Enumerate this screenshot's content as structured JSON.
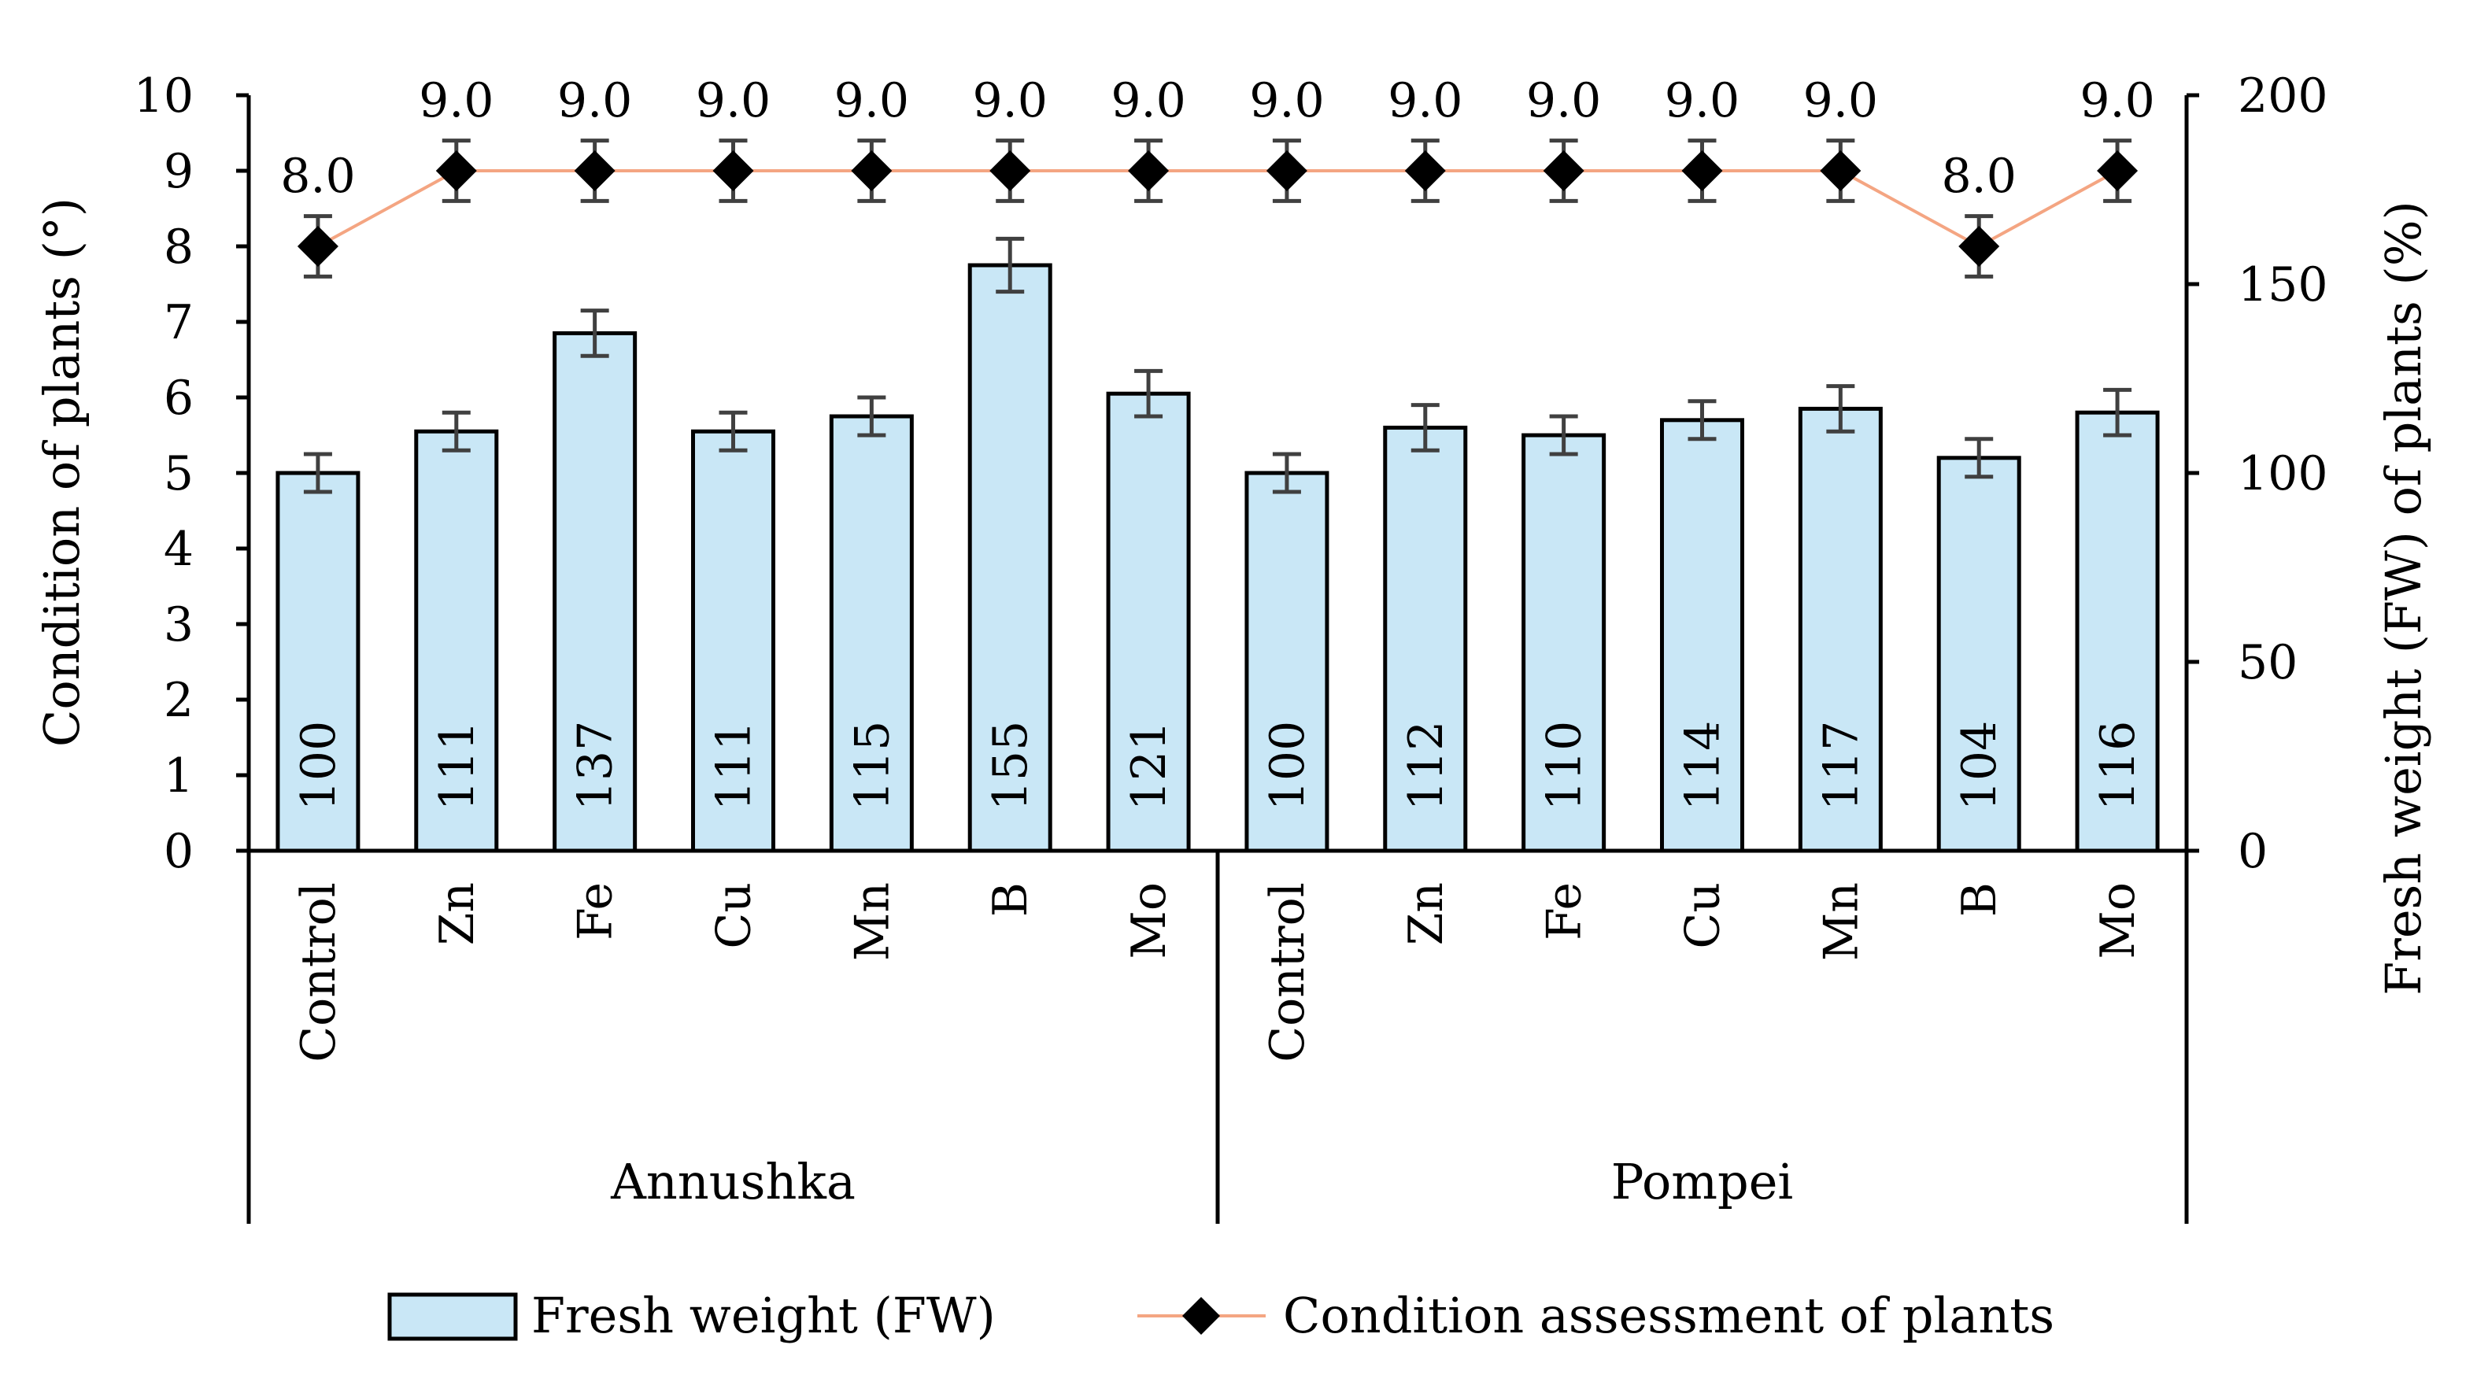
{
  "chart_data": {
    "type": "bar+line",
    "groups": [
      {
        "name": "Annushka",
        "categories": [
          "Control",
          "Zn",
          "Fe",
          "Cu",
          "Mn",
          "B",
          "Mo"
        ]
      },
      {
        "name": "Pompei",
        "categories": [
          "Control",
          "Zn",
          "Fe",
          "Cu",
          "Mn",
          "B",
          "Mo"
        ]
      }
    ],
    "bar_series": {
      "name": "Fresh weight (FW)",
      "axis": "right",
      "values": [
        100,
        111,
        137,
        111,
        115,
        155,
        121,
        100,
        112,
        110,
        114,
        117,
        104,
        116
      ],
      "labels": [
        "100",
        "111",
        "137",
        "111",
        "115",
        "155",
        "121",
        "100",
        "112",
        "110",
        "114",
        "117",
        "104",
        "116"
      ],
      "error": [
        5,
        5,
        6,
        5,
        5,
        7,
        6,
        5,
        6,
        5,
        5,
        6,
        5,
        6
      ]
    },
    "line_series": {
      "name": "Condition assessment of plants",
      "axis": "left",
      "values": [
        8.0,
        9.0,
        9.0,
        9.0,
        9.0,
        9.0,
        9.0,
        9.0,
        9.0,
        9.0,
        9.0,
        9.0,
        8.0,
        9.0
      ],
      "labels": [
        "8.0",
        "9.0",
        "9.0",
        "9.0",
        "9.0",
        "9.0",
        "9.0",
        "9.0",
        "9.0",
        "9.0",
        "9.0",
        "9.0",
        "8.0",
        "9.0"
      ],
      "error": [
        0.4,
        0.4,
        0.4,
        0.4,
        0.4,
        0.4,
        0.4,
        0.4,
        0.4,
        0.4,
        0.4,
        0.4,
        0.4,
        0.4
      ]
    },
    "left_axis": {
      "label": "Condition of plants (°)",
      "range": [
        0,
        10
      ],
      "ticks": [
        "0",
        "1",
        "2",
        "3",
        "4",
        "5",
        "6",
        "7",
        "8",
        "9",
        "10"
      ]
    },
    "right_axis": {
      "label": "Fresh weight (FW) of plants (%)",
      "range": [
        0,
        200
      ],
      "ticks": [
        "0",
        "50",
        "100",
        "150",
        "200"
      ]
    },
    "legend": {
      "position": "bottom",
      "items": [
        "Fresh weight (FW)",
        "Condition assessment of plants"
      ]
    },
    "colors": {
      "bar_fill": "#c9e7f6",
      "bar_stroke": "#000000",
      "line": "#f4a582",
      "marker": "#000000",
      "error_bar": "#404040"
    }
  }
}
